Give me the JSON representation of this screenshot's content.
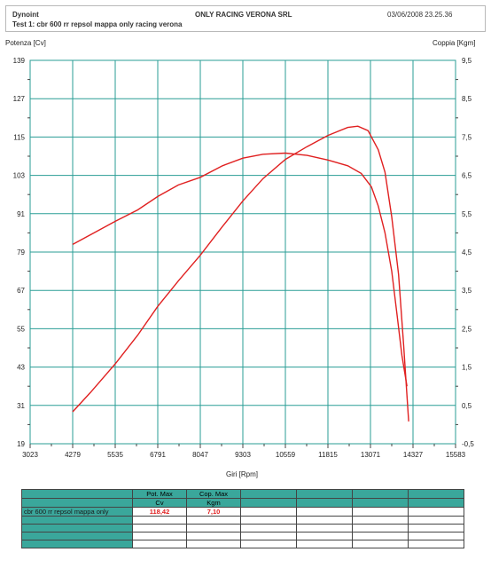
{
  "header": {
    "left_title": "Dynoint",
    "center_title": "ONLY RACING VERONA SRL",
    "datetime": "03/06/2008  23.25.36",
    "test_line": "Test 1:  cbr 600 rr repsol mappa only racing verona"
  },
  "chart_data": {
    "type": "line",
    "left_axis_label": "Potenza [Cv]",
    "right_axis_label": "Coppia [Kgm]",
    "xlabel": "Giri [Rpm]",
    "x_ticks": [
      3023,
      4279,
      5535,
      6791,
      8047,
      9303,
      10559,
      11815,
      13071,
      14327,
      15583
    ],
    "y_left_ticks": [
      19,
      31,
      43,
      55,
      67,
      79,
      91,
      103,
      115,
      127,
      139
    ],
    "y_right_ticks": [
      "-0,5",
      "0,5",
      "1,5",
      "2,5",
      "3,5",
      "4,5",
      "5,5",
      "6,5",
      "7,5",
      "8,5",
      "9,5"
    ],
    "xlim": [
      3023,
      15583
    ],
    "ylim_left": [
      19,
      139
    ],
    "ylim_right": [
      -0.5,
      9.5
    ],
    "grid": true,
    "colors": {
      "grid": "#2a9d95",
      "series": "#e02020"
    },
    "series": [
      {
        "axis": "left",
        "points": [
          [
            4279,
            29
          ],
          [
            4800,
            35
          ],
          [
            5535,
            44
          ],
          [
            6200,
            53
          ],
          [
            6791,
            62
          ],
          [
            7400,
            70
          ],
          [
            8047,
            78
          ],
          [
            8700,
            87
          ],
          [
            9303,
            95
          ],
          [
            9900,
            102
          ],
          [
            10559,
            108
          ],
          [
            11200,
            112
          ],
          [
            11815,
            115.5
          ],
          [
            12400,
            118
          ],
          [
            12700,
            118.4
          ],
          [
            13000,
            117
          ],
          [
            13300,
            111
          ],
          [
            13500,
            104
          ],
          [
            13700,
            90
          ],
          [
            13900,
            72
          ],
          [
            14050,
            50
          ],
          [
            14200,
            26
          ]
        ]
      },
      {
        "axis": "right",
        "points": [
          [
            4279,
            4.7
          ],
          [
            4800,
            4.95
          ],
          [
            5535,
            5.3
          ],
          [
            6200,
            5.6
          ],
          [
            6791,
            5.95
          ],
          [
            7400,
            6.25
          ],
          [
            8047,
            6.45
          ],
          [
            8700,
            6.75
          ],
          [
            9303,
            6.95
          ],
          [
            9900,
            7.05
          ],
          [
            10559,
            7.08
          ],
          [
            11200,
            7.02
          ],
          [
            11815,
            6.9
          ],
          [
            12400,
            6.75
          ],
          [
            12800,
            6.55
          ],
          [
            13100,
            6.2
          ],
          [
            13300,
            5.7
          ],
          [
            13500,
            5.0
          ],
          [
            13700,
            4.0
          ],
          [
            13850,
            2.9
          ],
          [
            14000,
            1.8
          ],
          [
            14150,
            1.0
          ]
        ]
      }
    ]
  },
  "table": {
    "headers": [
      {
        "line1": "Pot. Max",
        "line2": "Cv"
      },
      {
        "line1": "Cop. Max",
        "line2": "Kgm"
      }
    ],
    "rows": [
      {
        "name": "cbr 600 rr repsol mappa only",
        "pot": "118,42",
        "cop": "7,10"
      }
    ]
  }
}
